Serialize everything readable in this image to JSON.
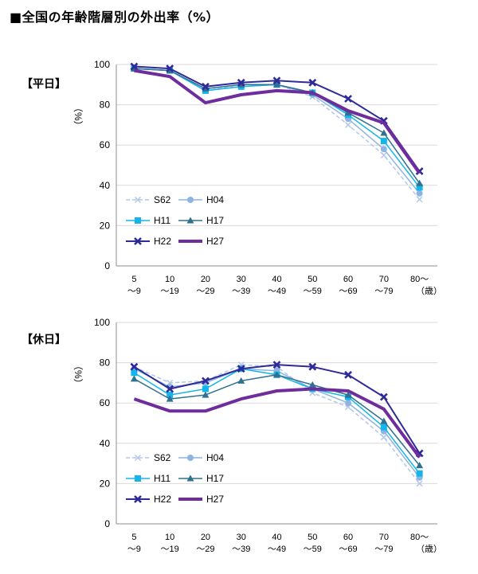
{
  "page": {
    "title": "■全国の年齢階層別の外出率（%）"
  },
  "panels": [
    {
      "label": "【平日】"
    },
    {
      "label": "【休日】"
    }
  ],
  "colors": {
    "S62": "#b4c7e7",
    "H04": "#8eb4e3",
    "H11": "#13b5ea",
    "H17": "#31708f",
    "H22": "#2e2a98",
    "H27": "#6f2c9c"
  },
  "markers": {
    "S62": "x-mark",
    "H04": "circle",
    "H11": "square",
    "H17": "triangle",
    "H22": "x-bold",
    "H27": "none"
  },
  "chart_data": [
    {
      "type": "line",
      "title": "【平日】",
      "ylabel": "%",
      "xlabel": "（歳）",
      "ylim": [
        0,
        100
      ],
      "yticks": [
        0,
        20,
        40,
        60,
        80,
        100
      ],
      "categories": [
        {
          "top": "5",
          "bottom": "～9"
        },
        {
          "top": "10",
          "bottom": "～19"
        },
        {
          "top": "20",
          "bottom": "～29"
        },
        {
          "top": "30",
          "bottom": "～39"
        },
        {
          "top": "40",
          "bottom": "～49"
        },
        {
          "top": "50",
          "bottom": "～59"
        },
        {
          "top": "60",
          "bottom": "～69"
        },
        {
          "top": "70",
          "bottom": "～79"
        },
        {
          "top": "80～",
          "bottom": ""
        }
      ],
      "grid": true,
      "legend_placement": "bottom-left",
      "series": [
        {
          "name": "S62",
          "values": [
            98,
            97,
            87,
            90,
            90,
            84,
            70,
            55,
            33
          ]
        },
        {
          "name": "H04",
          "values": [
            98,
            97,
            87,
            89,
            90,
            85,
            73,
            58,
            36
          ]
        },
        {
          "name": "H11",
          "values": [
            98,
            97,
            87,
            89,
            90,
            86,
            75,
            62,
            39
          ]
        },
        {
          "name": "H17",
          "values": [
            98,
            97,
            88,
            90,
            90,
            86,
            76,
            66,
            41
          ]
        },
        {
          "name": "H22",
          "values": [
            99,
            98,
            89,
            91,
            92,
            91,
            83,
            72,
            47
          ]
        },
        {
          "name": "H27",
          "values": [
            97,
            94,
            81,
            85,
            87,
            86,
            77,
            71,
            46
          ]
        }
      ]
    },
    {
      "type": "line",
      "title": "【休日】",
      "ylabel": "%",
      "xlabel": "（歳）",
      "ylim": [
        0,
        100
      ],
      "yticks": [
        0,
        20,
        40,
        60,
        80,
        100
      ],
      "categories": [
        {
          "top": "5",
          "bottom": "～9"
        },
        {
          "top": "10",
          "bottom": "～19"
        },
        {
          "top": "20",
          "bottom": "～29"
        },
        {
          "top": "30",
          "bottom": "～39"
        },
        {
          "top": "40",
          "bottom": "～49"
        },
        {
          "top": "50",
          "bottom": "～59"
        },
        {
          "top": "60",
          "bottom": "～69"
        },
        {
          "top": "70",
          "bottom": "～79"
        },
        {
          "top": "80～",
          "bottom": ""
        }
      ],
      "grid": true,
      "legend_placement": "bottom-left",
      "series": [
        {
          "name": "S62",
          "values": [
            78,
            70,
            71,
            79,
            78,
            65,
            58,
            43,
            20
          ]
        },
        {
          "name": "H04",
          "values": [
            77,
            68,
            70,
            77,
            76,
            67,
            60,
            46,
            23
          ]
        },
        {
          "name": "H11",
          "values": [
            75,
            64,
            67,
            77,
            74,
            67,
            63,
            48,
            25
          ]
        },
        {
          "name": "H17",
          "values": [
            72,
            62,
            64,
            71,
            74,
            69,
            64,
            51,
            29
          ]
        },
        {
          "name": "H22",
          "values": [
            78,
            67,
            71,
            77,
            79,
            78,
            74,
            63,
            35
          ]
        },
        {
          "name": "H27",
          "values": [
            62,
            56,
            56,
            62,
            66,
            67,
            66,
            57,
            33
          ]
        }
      ]
    }
  ]
}
